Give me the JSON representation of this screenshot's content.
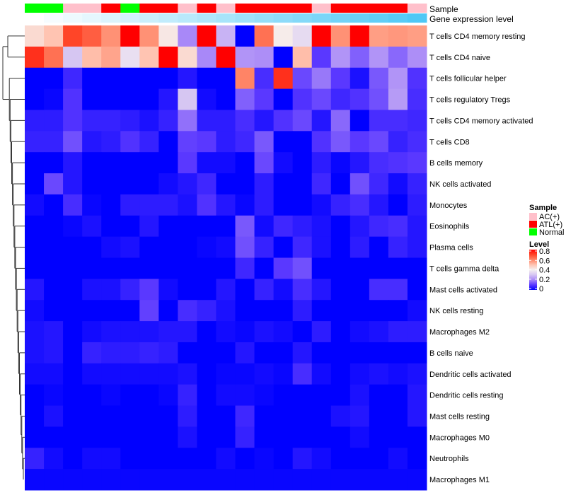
{
  "chart_data": {
    "type": "heatmap",
    "annotation_titles": {
      "sample": "Sample",
      "gene_level": "Gene expression level"
    },
    "sample_groups": [
      "Normal",
      "Normal",
      "AC(+)",
      "AC(+)",
      "ATL(+)",
      "Normal",
      "ATL(+)",
      "ATL(+)",
      "AC(+)",
      "ATL(+)",
      "AC(+)",
      "ATL(+)",
      "ATL(+)",
      "ATL(+)",
      "ATL(+)",
      "AC(+)",
      "ATL(+)",
      "ATL(+)",
      "ATL(+)",
      "ATL(+)",
      "AC(+)"
    ],
    "gene_expression_level": [
      0,
      0.05,
      0.1,
      0.15,
      0.2,
      0.25,
      0.3,
      0.35,
      0.4,
      0.45,
      0.5,
      0.55,
      0.6,
      0.65,
      0.7,
      0.75,
      0.8,
      0.85,
      0.9,
      0.95,
      1.0
    ],
    "rows": [
      "T cells CD4 memory resting",
      "T cells CD4 naive",
      "T cells follicular helper",
      "T cells regulatory  Tregs",
      "T cells CD4 memory activated",
      "T cells CD8",
      "B cells memory",
      "NK cells activated",
      "Monocytes",
      "Eosinophils",
      "Plasma cells",
      "T cells gamma delta",
      "Mast cells activated",
      "NK cells resting",
      "Macrophages M2",
      "B cells naive",
      "Dendritic cells activated",
      "Dendritic cells resting",
      "Mast cells resting",
      "Macrophages M0",
      "Neutrophils",
      "Macrophages M1"
    ],
    "values": [
      [
        0.45,
        0.5,
        0.7,
        0.66,
        0.58,
        0.8,
        0.58,
        0.42,
        0.2,
        0.8,
        0.27,
        0,
        0.63,
        0.41,
        0.35,
        0.8,
        0.58,
        0.8,
        0.56,
        0.57,
        0.56
      ],
      [
        0.73,
        0.63,
        0.3,
        0.51,
        0.55,
        0.36,
        0.5,
        0.8,
        0.45,
        0.2,
        0.8,
        0.22,
        0.21,
        0,
        0.51,
        0.1,
        0.22,
        0.15,
        0.22,
        0.16,
        0.21
      ],
      [
        0,
        0,
        0.07,
        0,
        0,
        0,
        0,
        0,
        0.04,
        0,
        0,
        0.6,
        0.08,
        0.73,
        0.12,
        0.18,
        0.1,
        0.03,
        0.14,
        0.22,
        0.09
      ],
      [
        0,
        0.01,
        0.09,
        0,
        0,
        0,
        0,
        0.04,
        0.3,
        0.02,
        0,
        0.15,
        0.1,
        0,
        0.09,
        0.12,
        0.07,
        0.09,
        0.13,
        0.23,
        0.08
      ],
      [
        0.05,
        0.05,
        0.09,
        0.06,
        0.06,
        0.05,
        0.03,
        0.06,
        0.17,
        0.05,
        0.05,
        0.08,
        0.04,
        0.09,
        0.12,
        0.04,
        0.16,
        0,
        0.08,
        0.08,
        0.07
      ],
      [
        0.06,
        0.06,
        0.13,
        0.04,
        0.05,
        0.09,
        0.06,
        0,
        0.11,
        0.1,
        0.05,
        0.07,
        0.14,
        0,
        0,
        0.09,
        0.14,
        0.1,
        0.12,
        0.06,
        0.08
      ],
      [
        0,
        0,
        0.04,
        0,
        0,
        0,
        0,
        0,
        0.1,
        0.02,
        0.02,
        0,
        0.12,
        0.02,
        0,
        0.05,
        0.01,
        0.04,
        0.08,
        0.09,
        0.1
      ],
      [
        0,
        0.12,
        0.04,
        0,
        0,
        0,
        0,
        0.02,
        0.04,
        0.07,
        0,
        0,
        0.05,
        0,
        0,
        0.07,
        0,
        0.13,
        0.07,
        0.02,
        0.06
      ],
      [
        0.02,
        0,
        0.08,
        0.01,
        0,
        0.05,
        0.05,
        0.05,
        0.03,
        0.09,
        0.04,
        0.01,
        0.05,
        0,
        0,
        0.02,
        0.06,
        0.08,
        0.04,
        0,
        0.05
      ],
      [
        0,
        0,
        0.01,
        0.03,
        0,
        0,
        0.04,
        0,
        0,
        0,
        0,
        0.14,
        0.02,
        0.07,
        0.05,
        0.03,
        0,
        0.04,
        0.07,
        0.08,
        0.04
      ],
      [
        0,
        0,
        0,
        0,
        0.02,
        0.03,
        0,
        0,
        0,
        0.01,
        0.02,
        0.13,
        0.06,
        0,
        0.07,
        0.03,
        0,
        0.05,
        0,
        0.06,
        0.04
      ],
      [
        0,
        0,
        0,
        0,
        0,
        0,
        0,
        0,
        0,
        0,
        0,
        0.07,
        0,
        0.1,
        0.13,
        0,
        0,
        0,
        0,
        0,
        0
      ],
      [
        0.04,
        0,
        0,
        0.03,
        0.03,
        0.06,
        0.1,
        0.02,
        0,
        0,
        0.04,
        0,
        0.06,
        0.02,
        0.08,
        0.04,
        0,
        0,
        0.08,
        0.08,
        0
      ],
      [
        0.02,
        0,
        0,
        0,
        0,
        0,
        0.11,
        0,
        0.08,
        0.06,
        0.03,
        0,
        0,
        0,
        0.05,
        0,
        0,
        0,
        0,
        0,
        0.02
      ],
      [
        0.03,
        0.04,
        0,
        0.02,
        0.03,
        0.03,
        0.03,
        0.04,
        0.04,
        0,
        0.02,
        0.01,
        0.03,
        0.02,
        0,
        0.05,
        0,
        0.02,
        0.03,
        0.05,
        0.05
      ],
      [
        0.03,
        0.04,
        0,
        0.06,
        0.05,
        0.05,
        0.06,
        0.05,
        0,
        0,
        0,
        0.04,
        0,
        0,
        0.04,
        0,
        0,
        0,
        0,
        0,
        0
      ],
      [
        0.02,
        0.02,
        0,
        0.02,
        0.02,
        0.02,
        0.02,
        0.02,
        0.03,
        0,
        0.01,
        0.01,
        0.02,
        0.01,
        0.08,
        0.02,
        0,
        0.02,
        0.03,
        0.02,
        0.03
      ],
      [
        0,
        0.01,
        0,
        0,
        0.01,
        0,
        0,
        0.01,
        0.06,
        0,
        0.02,
        0.02,
        0.01,
        0,
        0,
        0,
        0,
        0.03,
        0,
        0,
        0.04
      ],
      [
        0,
        0.03,
        0,
        0,
        0,
        0,
        0,
        0,
        0.05,
        0,
        0,
        0.07,
        0,
        0,
        0,
        0,
        0.03,
        0.04,
        0,
        0,
        0.04
      ],
      [
        0,
        0,
        0,
        0,
        0,
        0,
        0,
        0,
        0.03,
        0,
        0,
        0.06,
        0,
        0,
        0,
        0,
        0,
        0.02,
        0,
        0,
        0
      ],
      [
        0.06,
        0.02,
        0,
        0.02,
        0.02,
        0,
        0,
        0,
        0,
        0,
        0.02,
        0,
        0.01,
        0,
        0.04,
        0.02,
        0,
        0,
        0,
        0.02,
        0
      ],
      [
        0.01,
        0.01,
        0.01,
        0.01,
        0.01,
        0.01,
        0.01,
        0.01,
        0.01,
        0.01,
        0.01,
        0.01,
        0.01,
        0.01,
        0.01,
        0.01,
        0.01,
        0.01,
        0.01,
        0.01,
        0.01
      ]
    ],
    "color_range": [
      0,
      0.8
    ],
    "colors": {
      "low": "#0000FF",
      "mid": "#F5F0F0",
      "high": "#FF0000",
      "gene_low": "#FFFFFF",
      "gene_high": "#4FC8F5"
    },
    "legend": {
      "sample_title": "Sample",
      "sample_entries": [
        {
          "label": "AC(+)",
          "color": "#FFC0CB"
        },
        {
          "label": "ATL(+)",
          "color": "#FF0000"
        },
        {
          "label": "Normal",
          "color": "#00FF00"
        }
      ],
      "level_title": "Level",
      "level_ticks": [
        "0.8",
        "0.6",
        "0.4",
        "0.2",
        "0"
      ]
    },
    "placement": "legend right"
  }
}
